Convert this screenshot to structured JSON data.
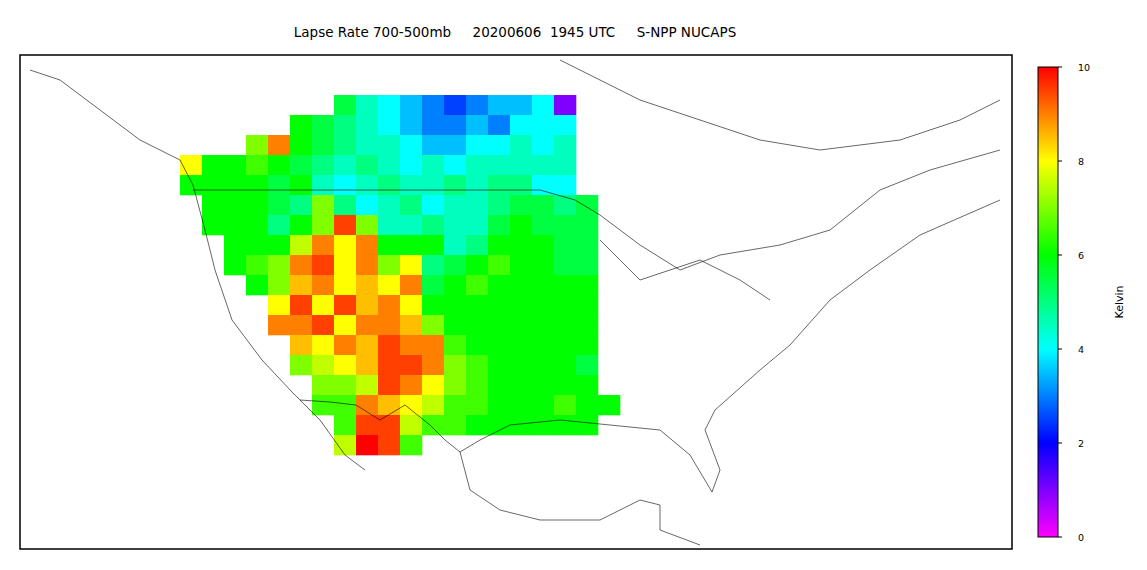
{
  "chart_data": {
    "type": "heatmap",
    "title": "Lapse Rate 700-500mb     20200606  1945 UTC     S-NPP NUCAPS",
    "cells": [
      [
        null,
        null,
        null,
        null,
        null,
        null,
        null,
        5.5,
        4.5,
        4,
        3.5,
        3,
        2.5,
        3,
        3.5,
        3.5,
        4,
        1,
        null,
        null
      ],
      [
        null,
        null,
        null,
        null,
        null,
        6,
        5.5,
        5,
        4.5,
        4,
        3.5,
        3,
        3,
        3.5,
        3,
        4,
        4,
        4,
        null,
        null
      ],
      [
        null,
        null,
        null,
        7,
        9,
        6,
        5.5,
        5,
        4.5,
        4.5,
        4,
        3.5,
        3.5,
        4,
        4,
        4.5,
        4,
        4.5,
        null,
        null
      ],
      [
        8,
        6,
        6,
        6.5,
        6,
        5.5,
        5,
        4.5,
        5,
        4.5,
        4,
        4.5,
        4,
        4.5,
        4.5,
        4.5,
        4.5,
        4.5,
        null,
        null
      ],
      [
        6,
        6,
        6,
        6,
        5.5,
        6,
        4.5,
        4,
        4.5,
        5,
        4.5,
        4.5,
        5,
        4.5,
        5,
        5,
        4,
        4,
        null,
        null
      ],
      [
        null,
        6,
        6,
        6,
        5.5,
        5,
        7,
        5,
        4,
        4.5,
        5,
        4,
        4.5,
        4.5,
        5,
        5.5,
        5.5,
        5,
        5.5,
        null
      ],
      [
        null,
        6,
        6,
        6,
        5,
        6,
        7,
        9.5,
        7,
        4.5,
        4.5,
        5,
        4.5,
        4.5,
        5.5,
        6,
        5.5,
        5.5,
        5.5,
        null
      ],
      [
        null,
        null,
        6,
        6,
        6,
        7.5,
        9,
        8,
        9,
        6,
        6,
        6,
        4.5,
        5,
        6,
        6,
        6,
        5.5,
        5.5,
        null
      ],
      [
        null,
        null,
        6,
        6.5,
        7,
        9,
        9.5,
        8,
        9,
        7,
        8,
        5,
        5.5,
        6,
        6.5,
        6,
        6,
        5.5,
        5.5,
        null
      ],
      [
        null,
        null,
        null,
        6,
        7,
        8.5,
        9,
        8,
        8.5,
        8,
        9,
        5.5,
        6,
        6.5,
        6,
        6,
        6,
        6,
        6,
        null
      ],
      [
        null,
        null,
        null,
        null,
        8,
        9.5,
        8,
        9.5,
        8.5,
        9,
        8,
        6,
        6,
        6,
        6,
        6,
        6,
        6,
        6,
        null
      ],
      [
        null,
        null,
        null,
        null,
        9,
        9,
        9.5,
        8,
        9,
        9,
        8.5,
        7,
        6,
        6,
        6,
        6,
        6,
        6,
        6,
        null
      ],
      [
        null,
        null,
        null,
        null,
        null,
        8.5,
        8,
        9,
        8.5,
        9.5,
        9,
        9,
        6.5,
        6,
        6,
        6,
        6,
        6,
        6,
        null
      ],
      [
        null,
        null,
        null,
        null,
        null,
        7,
        7.5,
        8,
        8.5,
        9.5,
        9.5,
        9,
        7,
        6.5,
        6,
        6,
        6,
        6,
        5.5,
        null
      ],
      [
        null,
        null,
        null,
        null,
        null,
        null,
        7,
        7,
        7.5,
        9.5,
        9,
        8,
        7,
        6.5,
        6,
        6,
        6,
        6,
        6,
        null
      ],
      [
        null,
        null,
        null,
        null,
        null,
        null,
        6.5,
        6.5,
        9,
        8.5,
        8,
        7.5,
        6.5,
        6.5,
        6,
        6,
        6,
        6.5,
        6,
        6
      ],
      [
        null,
        null,
        null,
        null,
        null,
        null,
        null,
        6.5,
        9.5,
        9.5,
        7.5,
        6.5,
        6.5,
        6,
        6,
        6,
        6,
        6,
        6,
        null
      ],
      [
        null,
        null,
        null,
        null,
        null,
        null,
        null,
        7.5,
        10,
        9.5,
        6.5,
        null,
        null,
        null,
        null,
        null,
        null,
        null,
        null,
        null
      ]
    ],
    "color_range": [
      0,
      10
    ],
    "color_ticks": [
      0,
      2,
      4,
      6,
      8,
      10
    ],
    "colorbar_label": "Kelvin"
  }
}
